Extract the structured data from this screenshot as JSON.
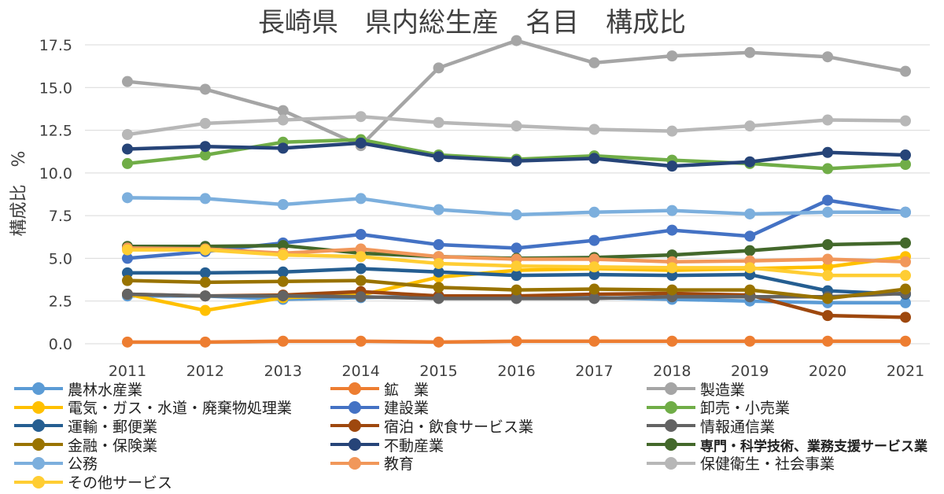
{
  "chart_data": {
    "type": "line",
    "title": "長崎県　県内総生産　名目　構成比",
    "xlabel": "",
    "ylabel": "構成比　%",
    "x": [
      "2011",
      "2012",
      "2013",
      "2014",
      "2015",
      "2016",
      "2017",
      "2018",
      "2019",
      "2020",
      "2021"
    ],
    "ylim": [
      0,
      17.5
    ],
    "yticks": [
      "0.0",
      "2.5",
      "5.0",
      "7.5",
      "10.0",
      "12.5",
      "15.0",
      "17.5"
    ],
    "grid": true,
    "legend_position": "bottom",
    "series": [
      {
        "name": "農林水産業",
        "color": "#5B9BD5",
        "values": [
          2.8,
          2.8,
          2.6,
          2.7,
          2.8,
          2.7,
          2.7,
          2.6,
          2.5,
          2.4,
          2.4
        ]
      },
      {
        "name": "鉱　業",
        "color": "#ED7D31",
        "values": [
          0.1,
          0.1,
          0.15,
          0.15,
          0.1,
          0.15,
          0.15,
          0.15,
          0.15,
          0.15,
          0.15
        ]
      },
      {
        "name": "製造業",
        "color": "#A5A5A5",
        "values": [
          15.35,
          14.9,
          13.65,
          11.6,
          16.15,
          17.75,
          16.45,
          16.85,
          17.05,
          16.8,
          15.95
        ]
      },
      {
        "name": "電気・ガス・水道・廃棄物処理業",
        "color": "#FFC000",
        "values": [
          2.9,
          1.95,
          2.7,
          2.85,
          3.9,
          4.3,
          4.4,
          4.3,
          4.4,
          4.5,
          5.1
        ]
      },
      {
        "name": "建設業",
        "color": "#4472C4",
        "values": [
          5.0,
          5.4,
          5.9,
          6.4,
          5.8,
          5.6,
          6.05,
          6.65,
          6.3,
          8.4,
          7.7
        ]
      },
      {
        "name": "卸売・小売業",
        "color": "#70AD47",
        "values": [
          10.55,
          11.05,
          11.8,
          11.95,
          11.05,
          10.8,
          11.0,
          10.75,
          10.55,
          10.25,
          10.5
        ]
      },
      {
        "name": "運輸・郵便業",
        "color": "#255E91",
        "values": [
          4.15,
          4.15,
          4.2,
          4.4,
          4.2,
          4.0,
          4.05,
          4.0,
          4.05,
          3.1,
          2.9
        ]
      },
      {
        "name": "宿泊・飲食サービス業",
        "color": "#9E480E",
        "values": [
          2.9,
          2.8,
          2.85,
          3.05,
          2.8,
          2.8,
          2.9,
          2.95,
          2.85,
          1.65,
          1.55
        ]
      },
      {
        "name": "情報通信業",
        "color": "#636363",
        "values": [
          2.9,
          2.8,
          2.8,
          2.75,
          2.65,
          2.65,
          2.65,
          2.75,
          2.75,
          2.75,
          2.95
        ]
      },
      {
        "name": "金融・保険業",
        "color": "#997300",
        "values": [
          3.7,
          3.6,
          3.65,
          3.7,
          3.3,
          3.15,
          3.2,
          3.15,
          3.15,
          2.65,
          3.2
        ]
      },
      {
        "name": "不動産業",
        "color": "#264478",
        "values": [
          11.4,
          11.55,
          11.45,
          11.75,
          10.95,
          10.7,
          10.85,
          10.4,
          10.65,
          11.2,
          11.05
        ]
      },
      {
        "name": "専門・科学技術、業務支援サービス業",
        "color": "#43682B",
        "values": [
          5.7,
          5.7,
          5.75,
          5.3,
          5.1,
          5.0,
          5.05,
          5.2,
          5.45,
          5.8,
          5.9
        ]
      },
      {
        "name": "公務",
        "color": "#7CAFDD",
        "values": [
          8.55,
          8.5,
          8.15,
          8.5,
          7.85,
          7.55,
          7.7,
          7.8,
          7.6,
          7.7,
          7.7
        ]
      },
      {
        "name": "教育",
        "color": "#F1975A",
        "values": [
          5.6,
          5.55,
          5.3,
          5.55,
          5.1,
          4.95,
          4.95,
          4.8,
          4.85,
          4.95,
          4.8
        ]
      },
      {
        "name": "保健衛生・社会事業",
        "color": "#B7B7B7",
        "values": [
          12.25,
          12.9,
          13.1,
          13.3,
          12.95,
          12.75,
          12.55,
          12.45,
          12.75,
          13.1,
          13.05
        ]
      },
      {
        "name": "その他サービス",
        "color": "#FFCD33",
        "values": [
          5.5,
          5.5,
          5.2,
          5.1,
          4.7,
          4.55,
          4.5,
          4.45,
          4.45,
          4.0,
          4.0
        ]
      }
    ]
  }
}
